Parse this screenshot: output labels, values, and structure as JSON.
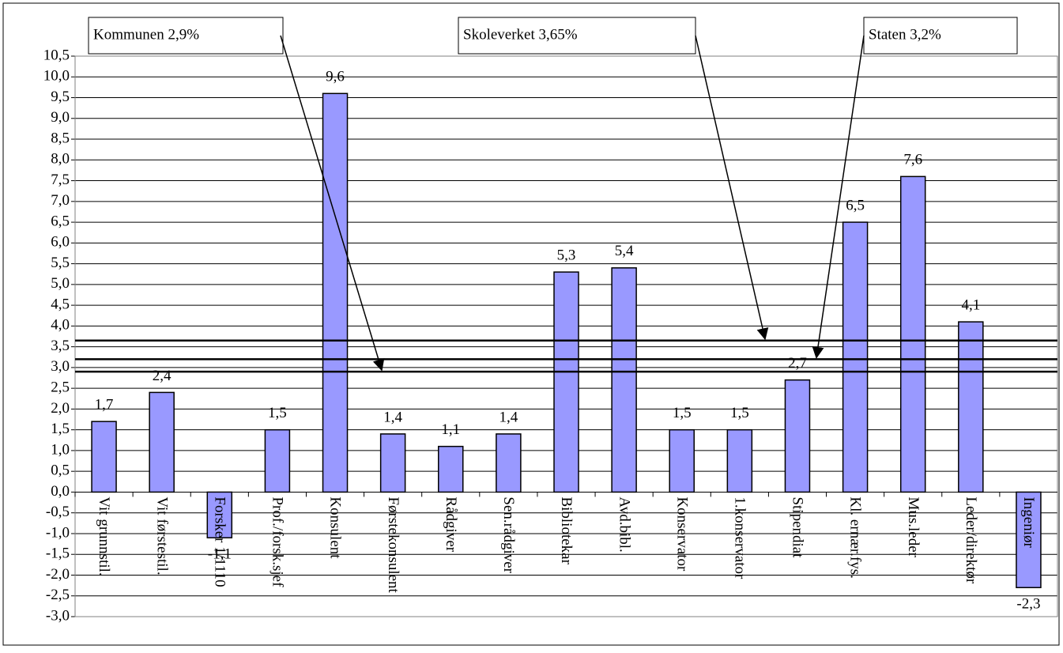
{
  "chart_data": {
    "type": "bar",
    "categories": [
      "Vit grunnstil.",
      "Vit førstestil.",
      "Forsker 1/1110",
      "Prof./forsk.sjef",
      "Konsulent",
      "Førstekonsulent",
      "Rådgiver",
      "Sen.rådgiver",
      "Bibliotekar",
      "Avd.bibl.",
      "Konservator",
      "1.konservator",
      "Stipendiat",
      "Kl. ernær.fys.",
      "Mus.leder",
      "Leder/direktør",
      "Ingeniør"
    ],
    "values": [
      1.7,
      2.4,
      -1.1,
      1.5,
      9.6,
      1.4,
      1.1,
      1.4,
      5.3,
      5.4,
      1.5,
      1.5,
      2.7,
      6.5,
      7.6,
      4.1,
      -2.3
    ],
    "value_labels": [
      "1,7",
      "2,4",
      "-1,1",
      "1,5",
      "9,6",
      "1,4",
      "1,1",
      "1,4",
      "5,3",
      "5,4",
      "1,5",
      "1,5",
      "2,7",
      "6,5",
      "7,6",
      "4,1",
      "-2,3"
    ],
    "color": "#9999ff",
    "ylim": [
      -3,
      10.5
    ],
    "yticks": [
      {
        "value": 10.5,
        "label": "10,5"
      },
      {
        "value": 10,
        "label": "10,0"
      },
      {
        "value": 9.5,
        "label": "9,5"
      },
      {
        "value": 9,
        "label": "9,0"
      },
      {
        "value": 8.5,
        "label": "8,5"
      },
      {
        "value": 8,
        "label": "8,0"
      },
      {
        "value": 7.5,
        "label": "7,5"
      },
      {
        "value": 7,
        "label": "7,0"
      },
      {
        "value": 6.5,
        "label": "6,5"
      },
      {
        "value": 6,
        "label": "6,0"
      },
      {
        "value": 5.5,
        "label": "5,5"
      },
      {
        "value": 5,
        "label": "5,0"
      },
      {
        "value": 4.5,
        "label": "4,5"
      },
      {
        "value": 4,
        "label": "4,0"
      },
      {
        "value": 3.5,
        "label": "3,5"
      },
      {
        "value": 3,
        "label": "3,0"
      },
      {
        "value": 2.5,
        "label": "2,5"
      },
      {
        "value": 2,
        "label": "2,0"
      },
      {
        "value": 1.5,
        "label": "1,5"
      },
      {
        "value": 1,
        "label": "1,0"
      },
      {
        "value": 0.5,
        "label": "0,5"
      },
      {
        "value": 0,
        "label": "0,0"
      },
      {
        "value": -0.5,
        "label": "-0,5"
      },
      {
        "value": -1,
        "label": "-1,0"
      },
      {
        "value": -1.5,
        "label": "-1,5"
      },
      {
        "value": -2,
        "label": "-2,0"
      },
      {
        "value": -2.5,
        "label": "-2,5"
      },
      {
        "value": -3,
        "label": "-3,0"
      }
    ],
    "grid": true,
    "reference_lines": [
      {
        "label": "Kommunen 2,9%",
        "value": 2.9
      },
      {
        "label": "Skoleverket 3,65%",
        "value": 3.65
      },
      {
        "label": "Staten 3,2%",
        "value": 3.2
      }
    ]
  }
}
